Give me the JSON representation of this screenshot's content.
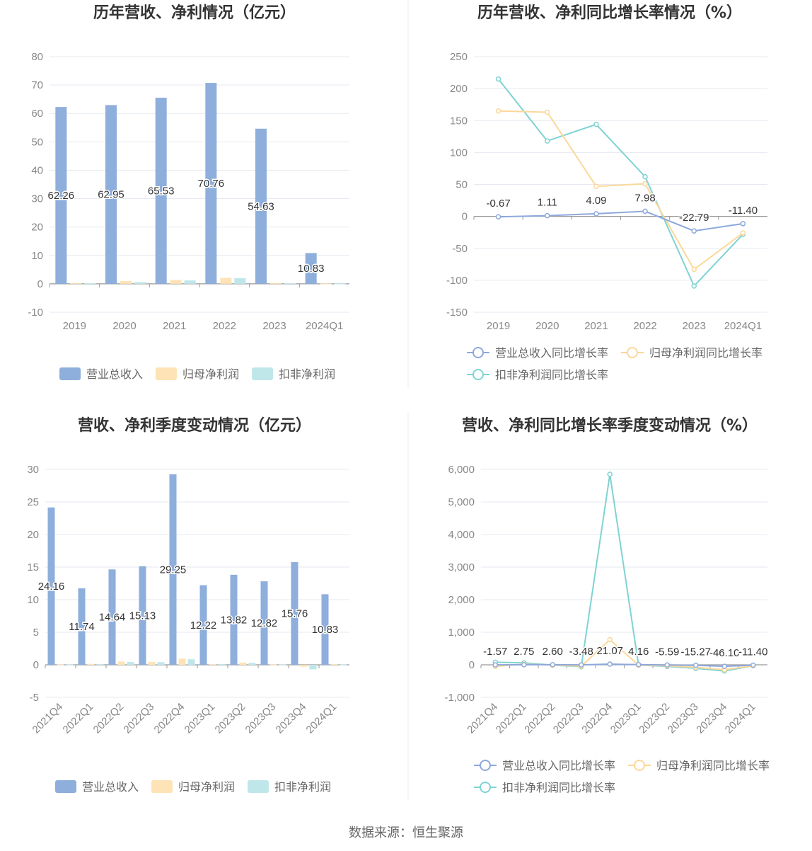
{
  "source_text": "数据来源：恒生聚源",
  "colors": {
    "revenue": "#8eaedc",
    "parent_profit": "#fde3b6",
    "deducted_profit": "#bfe7ea",
    "revenue_line": "#8ea8dc",
    "parent_line": "#fbd89a",
    "deducted_line": "#7fd3d3",
    "grid": "#e6e9f0",
    "divider": "#eeeeee"
  },
  "chart_data": [
    {
      "type": "bar",
      "title": "历年营收、净利情况（亿元）",
      "categories": [
        "2019",
        "2020",
        "2021",
        "2022",
        "2023",
        "2024Q1"
      ],
      "ylim": [
        -10,
        80
      ],
      "yticks": [
        "80",
        "70",
        "60",
        "50",
        "40",
        "30",
        "20",
        "10",
        "0",
        "-10"
      ],
      "series": [
        {
          "name": "营业总收入",
          "values": [
            62.26,
            62.95,
            65.53,
            70.76,
            54.63,
            10.83
          ],
          "labels": [
            "62.26",
            "62.95",
            "65.53",
            "70.76",
            "54.63",
            "10.83"
          ]
        },
        {
          "name": "归母净利润",
          "values": [
            0.3,
            1.0,
            1.4,
            2.1,
            0.3,
            0.1
          ]
        },
        {
          "name": "扣非净利润",
          "values": [
            0.2,
            0.6,
            1.2,
            2.0,
            0.2,
            0.1
          ]
        }
      ],
      "legend": "bottom",
      "grid": true
    },
    {
      "type": "line",
      "title": "历年营收、净利同比增长率情况（%）",
      "categories": [
        "2019",
        "2020",
        "2021",
        "2022",
        "2023",
        "2024Q1"
      ],
      "ylim": [
        -150,
        250
      ],
      "yticks": [
        "250",
        "200",
        "150",
        "100",
        "50",
        "0",
        "-50",
        "-100",
        "-150"
      ],
      "series": [
        {
          "name": "营业总收入同比增长率",
          "values": [
            -0.67,
            1.11,
            4.09,
            7.98,
            -22.79,
            -11.4
          ],
          "labels": [
            "-0.67",
            "1.11",
            "4.09",
            "7.98",
            "-22.79",
            "-11.40"
          ]
        },
        {
          "name": "归母净利润同比增长率",
          "values": [
            165,
            163,
            47,
            51,
            -83,
            -26
          ]
        },
        {
          "name": "扣非净利润同比增长率",
          "values": [
            215,
            118,
            144,
            62,
            -109,
            -28
          ]
        }
      ],
      "legend": "bottom",
      "grid": true
    },
    {
      "type": "bar",
      "title": "营收、净利季度变动情况（亿元）",
      "categories": [
        "2021Q4",
        "2022Q1",
        "2022Q2",
        "2022Q3",
        "2022Q4",
        "2023Q1",
        "2023Q2",
        "2023Q3",
        "2023Q4",
        "2024Q1"
      ],
      "ylim": [
        -5,
        30
      ],
      "yticks": [
        "30",
        "25",
        "20",
        "15",
        "10",
        "5",
        "0",
        "-5"
      ],
      "series": [
        {
          "name": "营业总收入",
          "values": [
            24.16,
            11.74,
            14.64,
            15.13,
            29.25,
            12.22,
            13.82,
            12.82,
            15.76,
            10.83
          ],
          "labels": [
            "24.16",
            "11.74",
            "14.64",
            "15.13",
            "29.25",
            "12.22",
            "13.82",
            "12.82",
            "15.76",
            "10.83"
          ]
        },
        {
          "name": "归母净利润",
          "values": [
            0.05,
            0.15,
            0.5,
            0.45,
            0.95,
            0.1,
            0.35,
            0.05,
            -0.3,
            0.1
          ]
        },
        {
          "name": "扣非净利润",
          "values": [
            0.05,
            0.1,
            0.45,
            0.4,
            0.85,
            0.1,
            0.3,
            0.05,
            -0.7,
            0.05
          ]
        }
      ],
      "legend": "bottom",
      "grid": true
    },
    {
      "type": "line",
      "title": "营收、净利同比增长率季度变动情况（%）",
      "categories": [
        "2021Q4",
        "2022Q1",
        "2022Q2",
        "2022Q3",
        "2022Q4",
        "2023Q1",
        "2023Q2",
        "2023Q3",
        "2023Q4",
        "2024Q1"
      ],
      "ylim": [
        -1000,
        6000
      ],
      "yticks": [
        "6,000",
        "5,000",
        "4,000",
        "3,000",
        "2,000",
        "1,000",
        "0",
        "-1,000"
      ],
      "series": [
        {
          "name": "营业总收入同比增长率",
          "values": [
            -1.57,
            2.75,
            2.6,
            -3.48,
            21.07,
            4.16,
            -5.59,
            -15.27,
            -46.1,
            -11.4
          ],
          "labels": [
            "-1.57",
            "2.75",
            "2.60",
            "-3.48",
            "21.07",
            "4.16",
            "-5.59",
            "-15.27",
            "-46.10",
            "-11.40"
          ]
        },
        {
          "name": "归母净利润同比增长率",
          "values": [
            -50,
            20,
            -10,
            -40,
            770,
            -10,
            -30,
            -80,
            -150,
            -30
          ]
        },
        {
          "name": "扣非净利润同比增长率",
          "values": [
            80,
            60,
            -10,
            -60,
            5850,
            -10,
            -50,
            -110,
            -190,
            -30
          ]
        }
      ],
      "legend": "bottom",
      "grid": true
    }
  ]
}
